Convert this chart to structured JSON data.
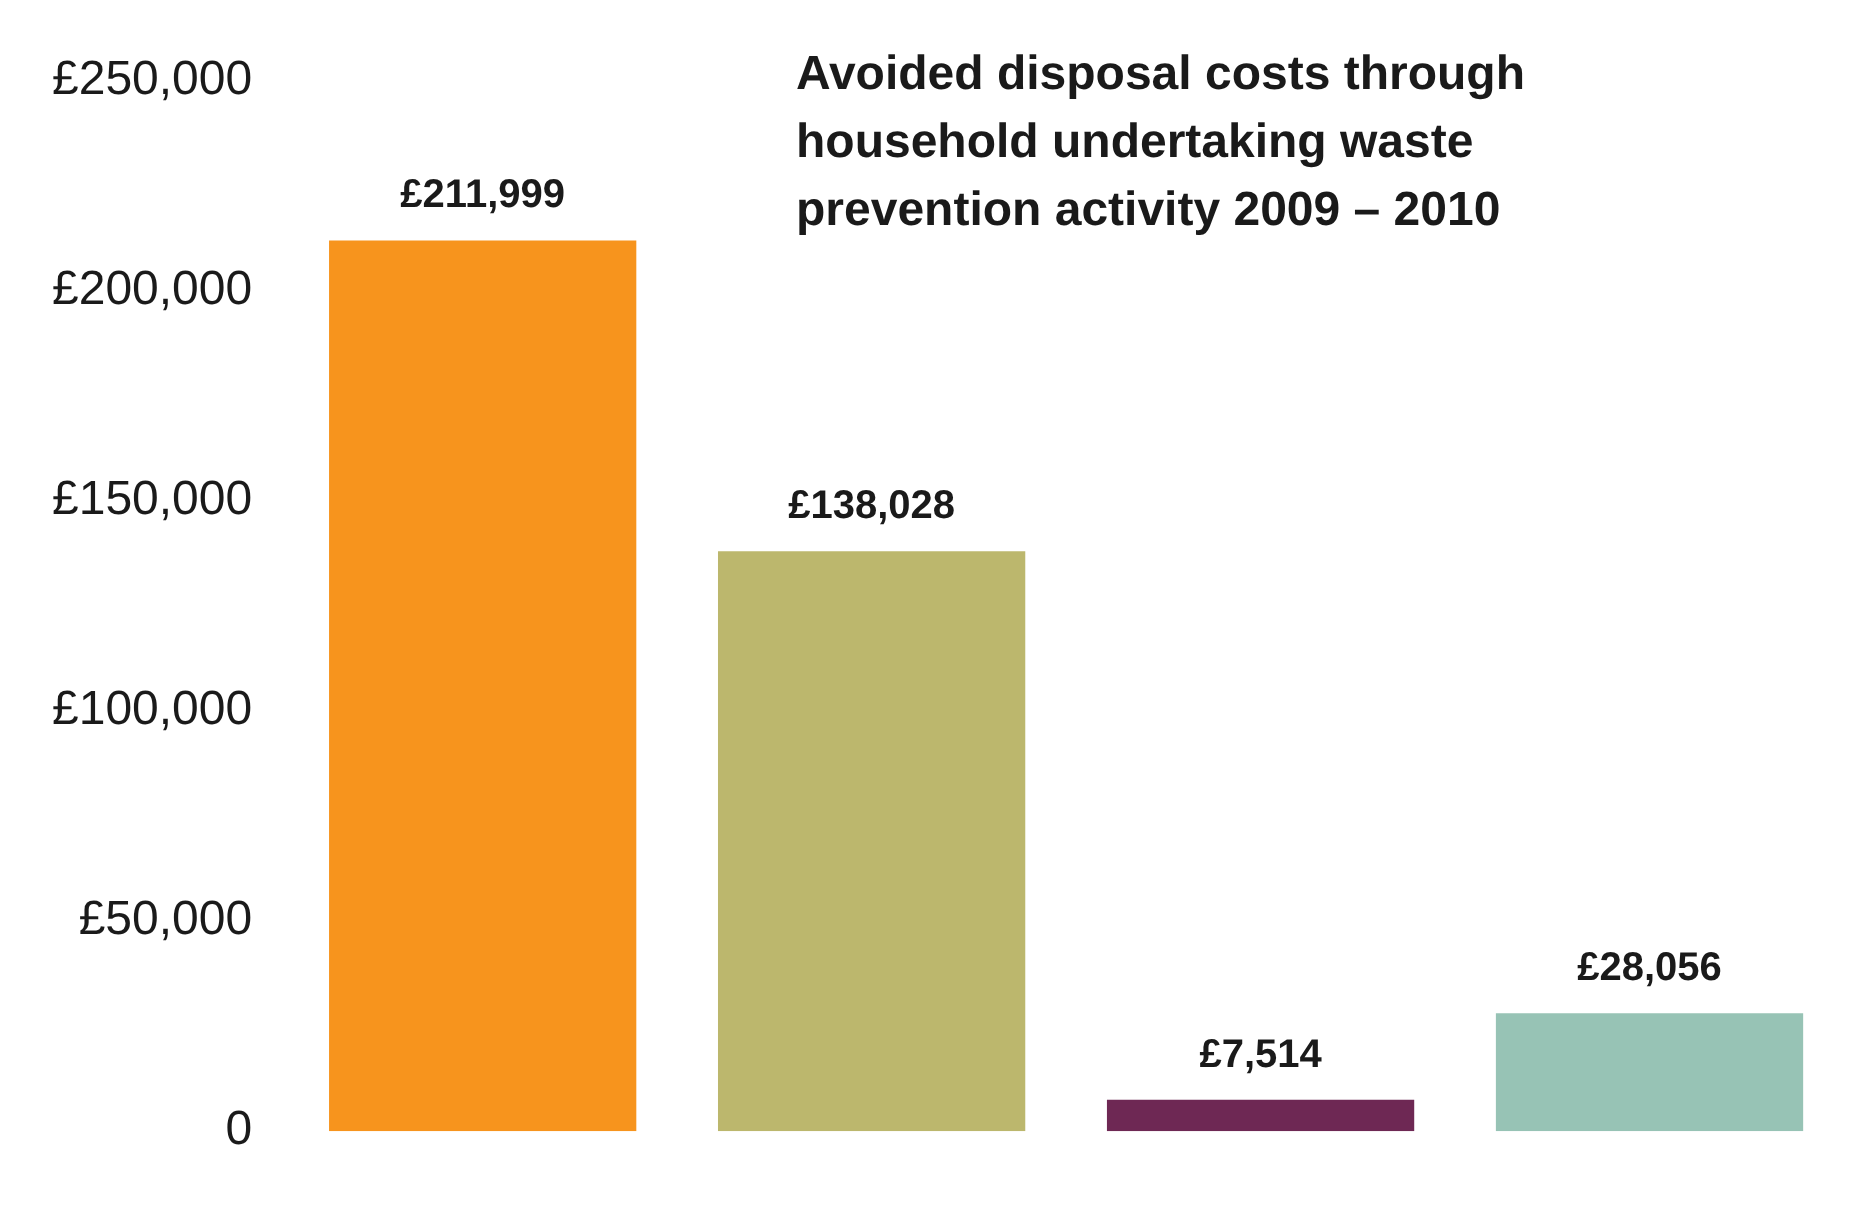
{
  "chart_data": {
    "type": "bar",
    "title": "Avoided disposal costs through household undertaking waste prevention activity 2009 – 2010",
    "categories": [
      null,
      null,
      null,
      null
    ],
    "values": [
      211999,
      138028,
      7514,
      28056
    ],
    "colors": [
      "#f7941d",
      "#bcb76d",
      "#6e2854",
      "#97c3b5"
    ],
    "value_labels": [
      "£211,999",
      "£138,028",
      "£7,514",
      "£28,056"
    ],
    "ylim": [
      0,
      250000
    ],
    "yticks": [
      {
        "value": 0,
        "label": "0"
      },
      {
        "value": 50000,
        "label": "£50,000"
      },
      {
        "value": 100000,
        "label": "£100,000"
      },
      {
        "value": 150000,
        "label": "£150,000"
      },
      {
        "value": 200000,
        "label": "£200,000"
      },
      {
        "value": 250000,
        "label": "£250,000"
      }
    ],
    "grid": false,
    "legend": false
  }
}
